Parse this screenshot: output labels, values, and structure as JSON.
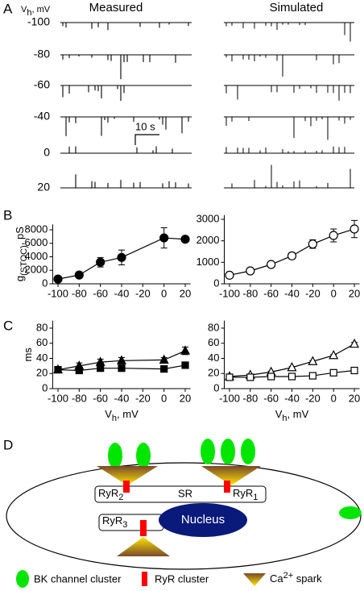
{
  "panels": [
    "A",
    "B",
    "C",
    "D"
  ],
  "panel_a": {
    "axis_label": {
      "main": "V",
      "sub": "h",
      "rest": ", mV"
    },
    "columns": [
      "Measured",
      "Simulated"
    ],
    "rows": [
      -100,
      -80,
      -60,
      -40,
      0,
      20
    ],
    "scale_bar": "10 s"
  },
  "chart_data": [
    {
      "type": "line",
      "ylabel": {
        "main": "g",
        "sub": "(STOC)",
        "rest": ", pS"
      },
      "x": [
        -100,
        -80,
        -60,
        -40,
        0,
        20
      ],
      "series": [
        {
          "marker": "circle",
          "color": "#000000",
          "fill": "#000000",
          "values": [
            700,
            1300,
            3200,
            3900,
            6800,
            6600
          ],
          "errors": [
            100,
            200,
            700,
            1100,
            1500,
            400
          ]
        }
      ],
      "xlim": [
        -105,
        25
      ],
      "xticks": [
        -100,
        -80,
        -60,
        -40,
        -20,
        0,
        20
      ],
      "ylim": [
        0,
        8800
      ],
      "yticks": [
        0,
        2000,
        4000,
        6000,
        8000
      ]
    },
    {
      "type": "line",
      "x": [
        -100,
        -80,
        -60,
        -40,
        -20,
        0,
        20
      ],
      "series": [
        {
          "marker": "circle",
          "color": "#000000",
          "fill": "#ffffff",
          "values": [
            400,
            600,
            900,
            1300,
            1850,
            2250,
            2550
          ],
          "errors": [
            60,
            60,
            100,
            150,
            200,
            300,
            400
          ]
        }
      ],
      "xlim": [
        -105,
        25
      ],
      "xticks": [
        -100,
        -80,
        -60,
        -40,
        -20,
        0,
        20
      ],
      "ylim": [
        0,
        3200
      ],
      "yticks": [
        0,
        1000,
        2000,
        3000
      ]
    },
    {
      "type": "line",
      "ylabel": {
        "main": "ms"
      },
      "xlabel": {
        "main": "V",
        "sub": "h",
        "rest": ", mV"
      },
      "x": [
        -100,
        -80,
        -60,
        -40,
        0,
        20
      ],
      "series": [
        {
          "marker": "triangle",
          "color": "#000000",
          "fill": "#000000",
          "values": [
            25,
            30,
            35,
            37,
            38,
            50
          ],
          "errors": [
            3,
            4,
            4,
            4,
            3,
            5
          ]
        },
        {
          "marker": "square",
          "color": "#000000",
          "fill": "#000000",
          "values": [
            25,
            24,
            27,
            27,
            26,
            31
          ],
          "errors": [
            2,
            2,
            2,
            2,
            2,
            2
          ]
        }
      ],
      "xlim": [
        -105,
        25
      ],
      "xticks": [
        -100,
        -80,
        -60,
        -40,
        -20,
        0,
        20
      ],
      "ylim": [
        0,
        90
      ],
      "yticks": [
        0,
        20,
        40,
        60,
        80
      ]
    },
    {
      "type": "line",
      "xlabel": {
        "main": "V",
        "sub": "h",
        "rest": ", mV"
      },
      "x": [
        -100,
        -80,
        -60,
        -40,
        -20,
        0,
        20
      ],
      "series": [
        {
          "marker": "triangle",
          "color": "#000000",
          "fill": "#ffffff",
          "values": [
            16,
            18,
            22,
            28,
            36,
            44,
            59
          ],
          "errors": [
            1,
            1,
            1,
            1,
            1,
            1,
            2
          ]
        },
        {
          "marker": "square",
          "color": "#000000",
          "fill": "#ffffff",
          "values": [
            15,
            15,
            16,
            16,
            17,
            21,
            24
          ],
          "errors": [
            1,
            1,
            1,
            1,
            1,
            1,
            1
          ]
        }
      ],
      "xlim": [
        -105,
        25
      ],
      "xticks": [
        -100,
        -80,
        -60,
        -40,
        -20,
        0,
        20
      ],
      "ylim": [
        0,
        90
      ],
      "yticks": [
        0,
        20,
        40,
        60,
        80
      ]
    }
  ],
  "panel_d": {
    "ryr2": {
      "main": "RyR",
      "sub": "2"
    },
    "sr": "SR",
    "ryr1": {
      "main": "RyR",
      "sub": "1"
    },
    "ryr3": {
      "main": "RyR",
      "sub": "3"
    },
    "nucleus": "Nucleus",
    "legend": [
      "BK channel cluster",
      "RyR cluster",
      {
        "main": "Ca",
        "sup": "2+",
        "rest": " spark"
      }
    ]
  }
}
